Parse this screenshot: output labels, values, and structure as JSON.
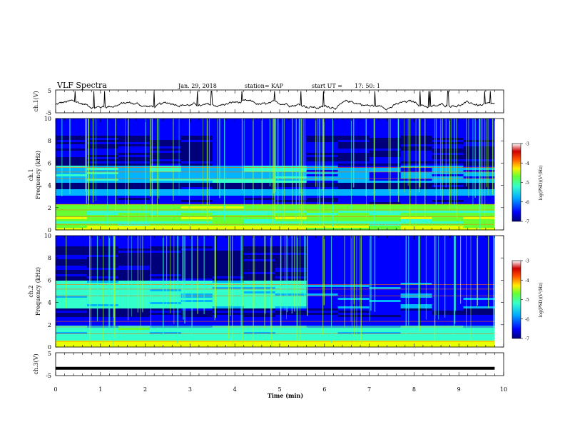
{
  "header": {
    "title": "VLF Spectra",
    "date": "Jan. 29, 2018",
    "station": "station= KAP",
    "start_label": "start  UT  =",
    "start_time": "17: 50: 1"
  },
  "colors": {
    "trace": "#000000",
    "colormap": [
      "#00007a",
      "#0000c8",
      "#0050ff",
      "#00c8ff",
      "#33ffcc",
      "#66ff33",
      "#ccff00",
      "#ffd000",
      "#ff6000",
      "#cc0000",
      "#ffffff"
    ]
  },
  "chart_data": [
    {
      "type": "line",
      "panel": "ch1-waveform",
      "ylabel": "ch.1(V)",
      "ylim": [
        -5,
        5
      ],
      "yticks": [
        "5",
        "-5"
      ],
      "xlim": [
        0,
        10
      ],
      "series": [
        {
          "values_note": "",
          "mean": -1.5,
          "amplitude": 1.5
        }
      ]
    },
    {
      "type": "heatmap",
      "panel": "ch1-spectrogram",
      "ylabel": "ch.1\nFrequency (kHz)",
      "ylabel_line1": "ch.1",
      "ylabel_line2": "Frequency (kHz)",
      "ylim": [
        0,
        10
      ],
      "yticks": [
        "0",
        "2",
        "4",
        "6",
        "8",
        "10"
      ],
      "xlim": [
        0,
        9.8
      ],
      "colorbar": {
        "label": "log(PSD)(V²/Hz)",
        "range": [
          -7,
          -3
        ],
        "ticks": [
          "-3",
          "-4",
          "-5",
          "-6",
          "-7"
        ]
      }
    },
    {
      "type": "heatmap",
      "panel": "ch2-spectrogram",
      "ylabel_line1": "ch.2",
      "ylabel_line2": "Frequency (kHz)",
      "ylim": [
        0,
        10
      ],
      "yticks": [
        "0",
        "2",
        "4",
        "6",
        "8",
        "10"
      ],
      "xlim": [
        0,
        9.8
      ],
      "colorbar": {
        "label": "log(PSD)(V²/Hz)",
        "range": [
          -7,
          -3
        ],
        "ticks": [
          "-3",
          "-4",
          "-5",
          "-6",
          "-7"
        ]
      }
    },
    {
      "type": "line",
      "panel": "ch3-waveform",
      "ylabel": "ch.3(V)",
      "ylim": [
        -5,
        5
      ],
      "yticks": [
        "5",
        "-5"
      ],
      "xlim": [
        0,
        10
      ],
      "series": [
        {
          "constant": -1.8
        }
      ]
    }
  ],
  "xaxis": {
    "label": "Time (min)",
    "ticks": [
      "0",
      "1",
      "2",
      "3",
      "4",
      "5",
      "6",
      "7",
      "8",
      "9",
      "10"
    ],
    "range": [
      0,
      10
    ]
  }
}
